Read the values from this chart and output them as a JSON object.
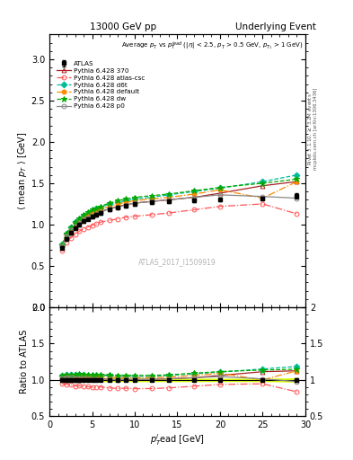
{
  "title_left": "13000 GeV pp",
  "title_right": "Underlying Event",
  "ylabel_main": "$\\langle$ mean $p_T$ $\\rangle$ [GeV]",
  "ylabel_ratio": "Ratio to ATLAS",
  "xlabel": "$p_T^l$ead [GeV]",
  "annotation": "Average $p_T$ vs $p_T^{lead}$ ($|\\eta|$ < 2.5, $p_T$ > 0.5 GeV, $p_{T_1}$ > 1 GeV)",
  "watermark": "ATLAS_2017_I1509919",
  "right_label1": "Rivet 3.1.10, $\\geq$ 3.2M events",
  "right_label2": "mcplots.cern.ch [arXiv:1306.3436]",
  "xlim": [
    0,
    30
  ],
  "ylim_main": [
    0.0,
    3.3
  ],
  "ylim_ratio": [
    0.5,
    2.0
  ],
  "yticks_main": [
    0.0,
    0.5,
    1.0,
    1.5,
    2.0,
    2.5,
    3.0
  ],
  "yticks_ratio": [
    0.5,
    1.0,
    1.5,
    2.0
  ],
  "x_atlas": [
    1.5,
    2.0,
    2.5,
    3.0,
    3.5,
    4.0,
    4.5,
    5.0,
    5.5,
    6.0,
    7.0,
    8.0,
    9.0,
    10.0,
    12.0,
    14.0,
    17.0,
    20.0,
    25.0,
    29.0
  ],
  "y_atlas": [
    0.72,
    0.83,
    0.9,
    0.96,
    1.0,
    1.04,
    1.07,
    1.1,
    1.12,
    1.14,
    1.18,
    1.21,
    1.23,
    1.25,
    1.27,
    1.28,
    1.29,
    1.3,
    1.32,
    1.35
  ],
  "y_atlas_err": [
    0.02,
    0.02,
    0.02,
    0.02,
    0.02,
    0.02,
    0.02,
    0.02,
    0.02,
    0.02,
    0.02,
    0.02,
    0.02,
    0.02,
    0.02,
    0.02,
    0.02,
    0.02,
    0.02,
    0.03
  ],
  "x_370": [
    1.5,
    2.0,
    2.5,
    3.0,
    3.5,
    4.0,
    4.5,
    5.0,
    5.5,
    6.0,
    7.0,
    8.0,
    9.0,
    10.0,
    12.0,
    14.0,
    17.0,
    20.0,
    25.0,
    29.0
  ],
  "y_370": [
    0.75,
    0.87,
    0.94,
    0.99,
    1.03,
    1.07,
    1.1,
    1.12,
    1.14,
    1.16,
    1.19,
    1.22,
    1.24,
    1.26,
    1.28,
    1.3,
    1.33,
    1.38,
    1.47,
    1.52
  ],
  "x_atl_csc": [
    1.5,
    2.0,
    2.5,
    3.0,
    3.5,
    4.0,
    4.5,
    5.0,
    5.5,
    6.0,
    7.0,
    8.0,
    9.0,
    10.0,
    12.0,
    14.0,
    17.0,
    20.0,
    25.0,
    29.0
  ],
  "y_atl_csc": [
    0.68,
    0.78,
    0.84,
    0.88,
    0.92,
    0.95,
    0.97,
    0.99,
    1.01,
    1.03,
    1.05,
    1.07,
    1.09,
    1.1,
    1.12,
    1.14,
    1.18,
    1.22,
    1.25,
    1.13
  ],
  "x_d6t": [
    1.5,
    2.0,
    2.5,
    3.0,
    3.5,
    4.0,
    4.5,
    5.0,
    5.5,
    6.0,
    7.0,
    8.0,
    9.0,
    10.0,
    12.0,
    14.0,
    17.0,
    20.0,
    25.0,
    29.0
  ],
  "y_d6t": [
    0.76,
    0.89,
    0.97,
    1.03,
    1.07,
    1.11,
    1.14,
    1.17,
    1.19,
    1.21,
    1.25,
    1.27,
    1.29,
    1.31,
    1.33,
    1.36,
    1.4,
    1.44,
    1.52,
    1.6
  ],
  "x_default": [
    1.5,
    2.0,
    2.5,
    3.0,
    3.5,
    4.0,
    4.5,
    5.0,
    5.5,
    6.0,
    7.0,
    8.0,
    9.0,
    10.0,
    12.0,
    14.0,
    17.0,
    20.0,
    25.0,
    29.0
  ],
  "y_default": [
    0.75,
    0.88,
    0.95,
    1.01,
    1.05,
    1.09,
    1.12,
    1.14,
    1.17,
    1.19,
    1.22,
    1.25,
    1.27,
    1.29,
    1.31,
    1.33,
    1.37,
    1.42,
    1.32,
    1.52
  ],
  "x_dw": [
    1.5,
    2.0,
    2.5,
    3.0,
    3.5,
    4.0,
    4.5,
    5.0,
    5.5,
    6.0,
    7.0,
    8.0,
    9.0,
    10.0,
    12.0,
    14.0,
    17.0,
    20.0,
    25.0,
    29.0
  ],
  "y_dw": [
    0.76,
    0.89,
    0.97,
    1.03,
    1.08,
    1.12,
    1.15,
    1.18,
    1.2,
    1.22,
    1.26,
    1.29,
    1.31,
    1.33,
    1.35,
    1.37,
    1.41,
    1.45,
    1.5,
    1.55
  ],
  "x_p0": [
    1.5,
    2.0,
    2.5,
    3.0,
    3.5,
    4.0,
    4.5,
    5.0,
    5.5,
    6.0,
    7.0,
    8.0,
    9.0,
    10.0,
    12.0,
    14.0,
    17.0,
    20.0,
    25.0,
    29.0
  ],
  "y_p0": [
    0.74,
    0.86,
    0.93,
    0.98,
    1.02,
    1.06,
    1.09,
    1.11,
    1.13,
    1.15,
    1.19,
    1.21,
    1.24,
    1.26,
    1.28,
    1.3,
    1.33,
    1.36,
    1.34,
    1.32
  ],
  "color_atlas": "#000000",
  "color_370": "#aa2222",
  "color_atl_csc": "#ff5555",
  "color_d6t": "#00bb99",
  "color_default": "#ff8800",
  "color_dw": "#00aa00",
  "color_p0": "#888888",
  "ratio_band_color": "#ddff00"
}
